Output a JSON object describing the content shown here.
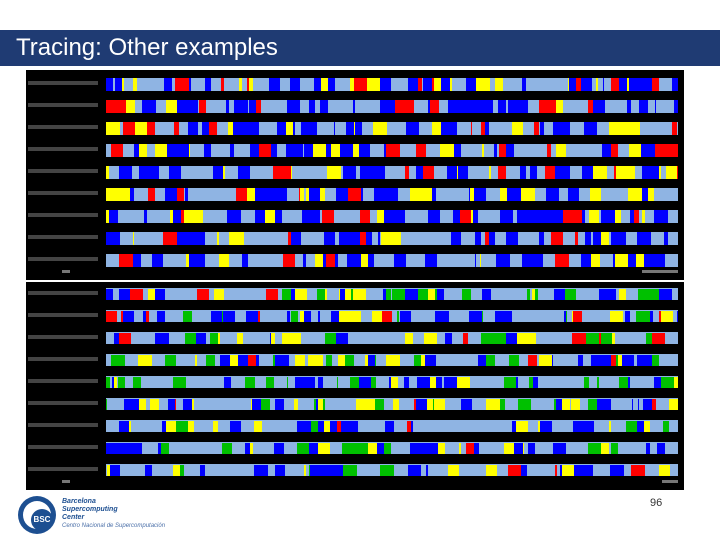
{
  "slide": {
    "title": "Tracing: Other examples",
    "page_number": "96"
  },
  "logo": {
    "mark": "BSC",
    "line1": "Barcelona",
    "line2": "Supercomputing",
    "line3": "Center",
    "line4": "Centro Nacional de Supercomputación"
  },
  "colors": {
    "header": "#1f3b73",
    "blue": "#0000ff",
    "lightblue": "#8fb4e3",
    "yellow": "#ffff00",
    "red": "#ff0000",
    "green": "#00c000",
    "background": "#000000"
  }
}
